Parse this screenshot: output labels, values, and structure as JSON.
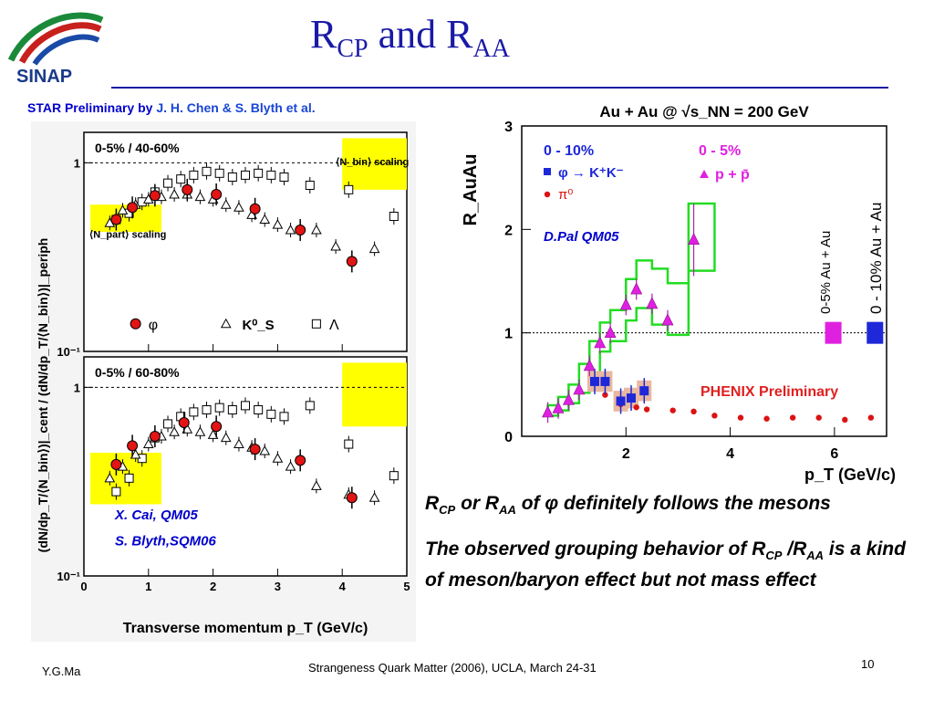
{
  "slide": {
    "title_main": "R",
    "title_sub1": "CP",
    "title_and": " and R",
    "title_sub2": "AA",
    "logo_text": "SINAP",
    "credit_prefix": "STAR Preliminary by ",
    "credit_names": "J. H. Chen & S. Blyth et al.",
    "note1_r1": "R",
    "note1_s1": "CP",
    "note1_or": " or R",
    "note1_s2": "AA",
    "note1_rest": " of φ definitely follows the mesons",
    "note2_a": "The observed grouping behavior of R",
    "note2_s1": "CP",
    "note2_b": " /R",
    "note2_s2": "AA",
    "note2_c": " is a kind of meson/baryon effect but not mass effect",
    "footer_left": "Y.G.Ma",
    "footer_center": "Strangeness Quark Matter (2006),  UCLA, March 24-31",
    "page_number": "10"
  },
  "colors": {
    "title": "#1a1aa6",
    "credit": "#0000cc",
    "phi_marker": "#e31414",
    "kaon_blue": "#1e28d8",
    "proton_magenta": "#e020e0",
    "green_band": "#22dd22",
    "yellow_band": "#ffff00",
    "pi0": "#dd1111"
  },
  "chart_data": [
    {
      "type": "scatter",
      "panel": "star-top",
      "label": "0-5% / 40-60%",
      "ylabel": "(dN/dp_T/⟨N_bin⟩)|_cent / (dN/dp_T/⟨N_bin⟩)|_periph",
      "y_scale": "log",
      "xlim": [
        0,
        5
      ],
      "ylim": [
        0.1,
        1.45
      ],
      "xticks": [
        "0",
        "1",
        "2",
        "3",
        "4",
        "5"
      ],
      "yticks": [
        "10⁻¹",
        "1"
      ],
      "nbin_label": "⟨N_bin⟩ scaling",
      "npart_label": "⟨N_part⟩ scaling",
      "legend": [
        "φ",
        "K⁰_S",
        "Λ"
      ],
      "series": [
        {
          "name": "φ",
          "x": [
            0.5,
            0.75,
            1.1,
            1.6,
            2.05,
            2.65,
            3.35,
            4.15
          ],
          "y": [
            0.5,
            0.58,
            0.67,
            0.72,
            0.68,
            0.57,
            0.44,
            0.3
          ]
        },
        {
          "name": "K⁰_S",
          "x": [
            0.4,
            0.6,
            0.8,
            1.0,
            1.2,
            1.4,
            1.6,
            1.8,
            2.0,
            2.2,
            2.4,
            2.6,
            2.8,
            3.0,
            3.2,
            3.6,
            3.9,
            4.5
          ],
          "y": [
            0.48,
            0.56,
            0.6,
            0.64,
            0.66,
            0.68,
            0.68,
            0.66,
            0.64,
            0.6,
            0.58,
            0.53,
            0.5,
            0.47,
            0.44,
            0.44,
            0.36,
            0.35
          ]
        },
        {
          "name": "Λ",
          "x": [
            0.5,
            0.7,
            0.9,
            1.1,
            1.3,
            1.5,
            1.7,
            1.9,
            2.1,
            2.3,
            2.5,
            2.7,
            2.9,
            3.1,
            3.5,
            4.1,
            4.8
          ],
          "y": [
            0.5,
            0.54,
            0.62,
            0.7,
            0.78,
            0.82,
            0.86,
            0.9,
            0.88,
            0.84,
            0.86,
            0.88,
            0.86,
            0.84,
            0.76,
            0.72,
            0.52
          ]
        }
      ]
    },
    {
      "type": "scatter",
      "panel": "star-bottom",
      "label": "0-5% / 60-80%",
      "ylabel": "(dN/dp_T/⟨N_bin⟩)|_cent / (dN/dp_T/⟨N_bin⟩)|_periph",
      "xlabel": "Transverse momentum p_T (GeV/c)",
      "y_scale": "log",
      "xlim": [
        0,
        5
      ],
      "ylim": [
        0.1,
        1.45
      ],
      "xticks": [
        "0",
        "1",
        "2",
        "3",
        "4",
        "5"
      ],
      "yticks": [
        "10⁻¹",
        "1"
      ],
      "citation1": "X. Cai, QM05",
      "citation2": "S. Blyth,SQM06",
      "series": [
        {
          "name": "φ",
          "x": [
            0.5,
            0.75,
            1.1,
            1.55,
            2.05,
            2.65,
            3.35,
            4.15
          ],
          "y": [
            0.39,
            0.49,
            0.55,
            0.65,
            0.62,
            0.47,
            0.41,
            0.26
          ]
        },
        {
          "name": "K⁰_S",
          "x": [
            0.4,
            0.6,
            0.8,
            1.0,
            1.2,
            1.4,
            1.6,
            1.8,
            2.0,
            2.2,
            2.4,
            2.6,
            2.8,
            3.0,
            3.2,
            3.6,
            4.1,
            4.5
          ],
          "y": [
            0.33,
            0.38,
            0.44,
            0.5,
            0.55,
            0.58,
            0.6,
            0.58,
            0.56,
            0.54,
            0.5,
            0.48,
            0.46,
            0.42,
            0.38,
            0.3,
            0.27,
            0.26
          ]
        },
        {
          "name": "Λ",
          "x": [
            0.5,
            0.7,
            0.9,
            1.1,
            1.3,
            1.5,
            1.7,
            1.9,
            2.1,
            2.3,
            2.5,
            2.7,
            2.9,
            3.1,
            3.5,
            4.1,
            4.8
          ],
          "y": [
            0.28,
            0.33,
            0.42,
            0.54,
            0.64,
            0.7,
            0.74,
            0.76,
            0.78,
            0.76,
            0.8,
            0.76,
            0.72,
            0.7,
            0.8,
            0.5,
            0.34
          ]
        }
      ]
    },
    {
      "type": "scatter",
      "panel": "phenix-raa",
      "title": "Au + Au @ √s_NN = 200 GeV",
      "ylabel": "R_AuAu",
      "xlabel": "p_T (GeV/c)",
      "xlim": [
        0,
        7.0
      ],
      "ylim": [
        0,
        3
      ],
      "xticks": [
        "2",
        "4",
        "6"
      ],
      "yticks": [
        "0",
        "1",
        "2",
        "3"
      ],
      "legend_left_header": "0 - 10%",
      "legend_right_header": "0 - 5%",
      "credit": "D.Pal QM05",
      "phenix_label": "PHENIX Preliminary",
      "ncoll_label_1": "0-5% Au + Au",
      "ncoll_label_2": "0 - 10% Au + Au",
      "series": [
        {
          "name": "φ → K⁺K⁻",
          "x": [
            1.4,
            1.6,
            1.9,
            2.1,
            2.35
          ],
          "y": [
            0.53,
            0.53,
            0.34,
            0.37,
            0.44
          ]
        },
        {
          "name": "π⁰",
          "x": [
            1.6,
            1.9,
            2.2,
            2.4,
            2.9,
            3.3,
            3.7,
            4.2,
            4.7,
            5.2,
            5.7,
            6.2,
            6.7
          ],
          "y": [
            0.4,
            0.31,
            0.28,
            0.26,
            0.25,
            0.24,
            0.2,
            0.18,
            0.17,
            0.18,
            0.18,
            0.16,
            0.18
          ]
        },
        {
          "name": "p + p̄",
          "x": [
            0.5,
            0.7,
            0.9,
            1.1,
            1.3,
            1.5,
            1.7,
            2.0,
            2.2,
            2.5,
            2.8,
            3.3
          ],
          "y": [
            0.23,
            0.27,
            0.35,
            0.45,
            0.68,
            0.9,
            1.0,
            1.27,
            1.42,
            1.28,
            1.12,
            1.9
          ]
        }
      ]
    }
  ]
}
